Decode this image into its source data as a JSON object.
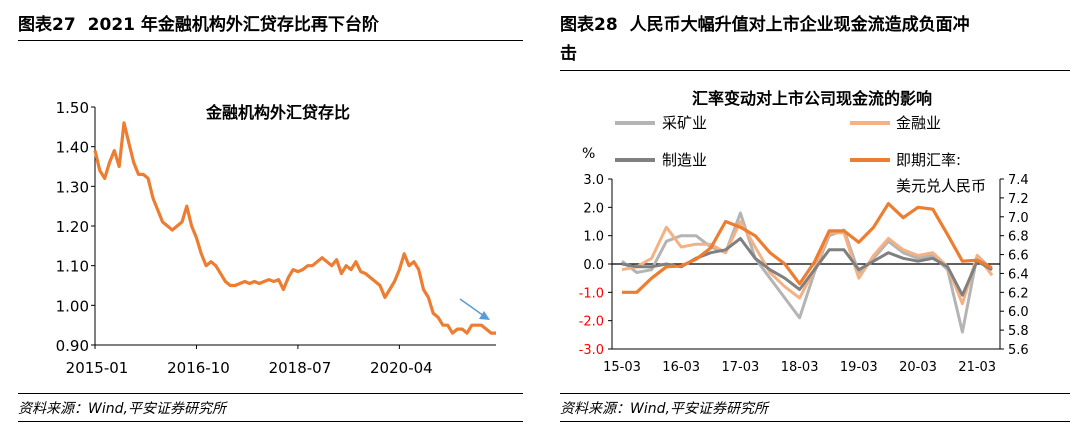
{
  "left": {
    "figure_number": "图表27",
    "figure_title": "2021 年金融机构外汇贷存比再下台阶",
    "source": "资料来源：Wind,平安证券研究所"
  },
  "right": {
    "figure_number": "图表28",
    "figure_title_line1": "人民币大幅升值对上市企业现金流造成负面冲",
    "figure_title_line2": "击",
    "source": "资料来源：Wind,平安证券研究所"
  },
  "chart_data": [
    {
      "type": "line",
      "title": "金融机构外汇贷存比",
      "xlabel": "",
      "ylabel": "",
      "ylim": [
        0.9,
        1.5
      ],
      "yticks": [
        "0.90",
        "1.00",
        "1.10",
        "1.20",
        "1.30",
        "1.40",
        "1.50"
      ],
      "xticks": [
        "2015-01",
        "2016-10",
        "2018-07",
        "2020-04"
      ],
      "x_start": "2015-01",
      "x_end": "2021-12",
      "series": [
        {
          "name": "金融机构外汇贷存比",
          "color": "#ed7d31",
          "values": [
            1.39,
            1.34,
            1.32,
            1.36,
            1.39,
            1.35,
            1.46,
            1.41,
            1.36,
            1.33,
            1.33,
            1.32,
            1.27,
            1.24,
            1.21,
            1.2,
            1.19,
            1.2,
            1.21,
            1.25,
            1.2,
            1.17,
            1.13,
            1.1,
            1.11,
            1.1,
            1.08,
            1.06,
            1.05,
            1.05,
            1.055,
            1.06,
            1.055,
            1.06,
            1.055,
            1.06,
            1.065,
            1.06,
            1.065,
            1.04,
            1.07,
            1.09,
            1.085,
            1.09,
            1.1,
            1.1,
            1.11,
            1.12,
            1.11,
            1.1,
            1.115,
            1.08,
            1.1,
            1.09,
            1.11,
            1.085,
            1.08,
            1.07,
            1.06,
            1.05,
            1.02,
            1.04,
            1.06,
            1.09,
            1.13,
            1.1,
            1.11,
            1.09,
            1.04,
            1.02,
            0.98,
            0.97,
            0.95,
            0.95,
            0.93,
            0.94,
            0.94,
            0.93,
            0.95,
            0.95,
            0.95,
            0.94,
            0.93,
            0.93
          ]
        }
      ],
      "annotations": [
        {
          "type": "arrow",
          "color": "#5b9bd5",
          "meaning": "downward trend"
        }
      ]
    },
    {
      "type": "line",
      "title": "汇率变动对上市公司现金流的影响",
      "left_axis_unit": "%",
      "ylim_left": [
        -3.0,
        3.0
      ],
      "yticks_left": [
        "3.0",
        "2.0",
        "1.0",
        "0.0",
        "-1.0",
        "-2.0",
        "-3.0"
      ],
      "ylim_right": [
        5.6,
        7.4
      ],
      "yticks_right": [
        "7.4",
        "7.2",
        "7.0",
        "6.8",
        "6.6",
        "6.4",
        "6.2",
        "6.0",
        "5.8",
        "5.6"
      ],
      "categories": [
        "15-03",
        "15-06",
        "15-09",
        "15-12",
        "16-03",
        "16-06",
        "16-09",
        "16-12",
        "17-03",
        "17-06",
        "17-09",
        "17-12",
        "18-03",
        "18-06",
        "18-09",
        "18-12",
        "19-03",
        "19-06",
        "19-09",
        "19-12",
        "20-03",
        "20-06",
        "20-09",
        "20-12",
        "21-03",
        "21-06"
      ],
      "xticks": [
        "15-03",
        "16-03",
        "17-03",
        "18-03",
        "19-03",
        "20-03",
        "21-03"
      ],
      "legend": [
        "采矿业",
        "金融业",
        "制造业",
        "即期汇率:美元兑人民币"
      ],
      "legend_second_line": "美元兑人民币",
      "series": [
        {
          "name": "采矿业",
          "axis": "left",
          "color": "#b4b4b4",
          "values": [
            0.1,
            -0.3,
            -0.2,
            0.8,
            1.0,
            1.0,
            0.6,
            0.4,
            1.8,
            0.2,
            -0.5,
            -1.2,
            -1.9,
            -0.3,
            1.0,
            1.2,
            -0.3,
            0.2,
            0.8,
            0.4,
            0.2,
            0.3,
            -0.2,
            -2.4,
            0.3,
            -0.2
          ]
        },
        {
          "name": "金融业",
          "axis": "left",
          "color": "#f4b183",
          "values": [
            -0.2,
            -0.1,
            0.2,
            1.3,
            0.6,
            0.7,
            0.7,
            0.4,
            1.5,
            0.6,
            -0.3,
            -0.8,
            -1.2,
            -0.2,
            1.1,
            1.1,
            -0.5,
            0.3,
            0.9,
            0.5,
            0.3,
            0.4,
            -0.1,
            -1.4,
            0.3,
            -0.4
          ]
        },
        {
          "name": "制造业",
          "axis": "left",
          "color": "#808080",
          "values": [
            0.0,
            -0.1,
            -0.1,
            0.0,
            -0.1,
            0.2,
            0.4,
            0.5,
            0.9,
            0.2,
            -0.2,
            -0.5,
            -0.9,
            -0.2,
            0.5,
            0.5,
            -0.2,
            0.1,
            0.4,
            0.2,
            0.1,
            0.2,
            -0.1,
            -1.1,
            0.1,
            -0.2
          ]
        },
        {
          "name": "即期汇率:美元兑人民币",
          "axis": "right",
          "color": "#ed7d31",
          "values": [
            6.2,
            6.2,
            6.35,
            6.47,
            6.48,
            6.55,
            6.67,
            6.95,
            6.89,
            6.8,
            6.62,
            6.5,
            6.29,
            6.52,
            6.85,
            6.85,
            6.73,
            6.89,
            7.14,
            6.99,
            7.1,
            7.08,
            6.81,
            6.53,
            6.54,
            6.46
          ]
        }
      ]
    }
  ]
}
